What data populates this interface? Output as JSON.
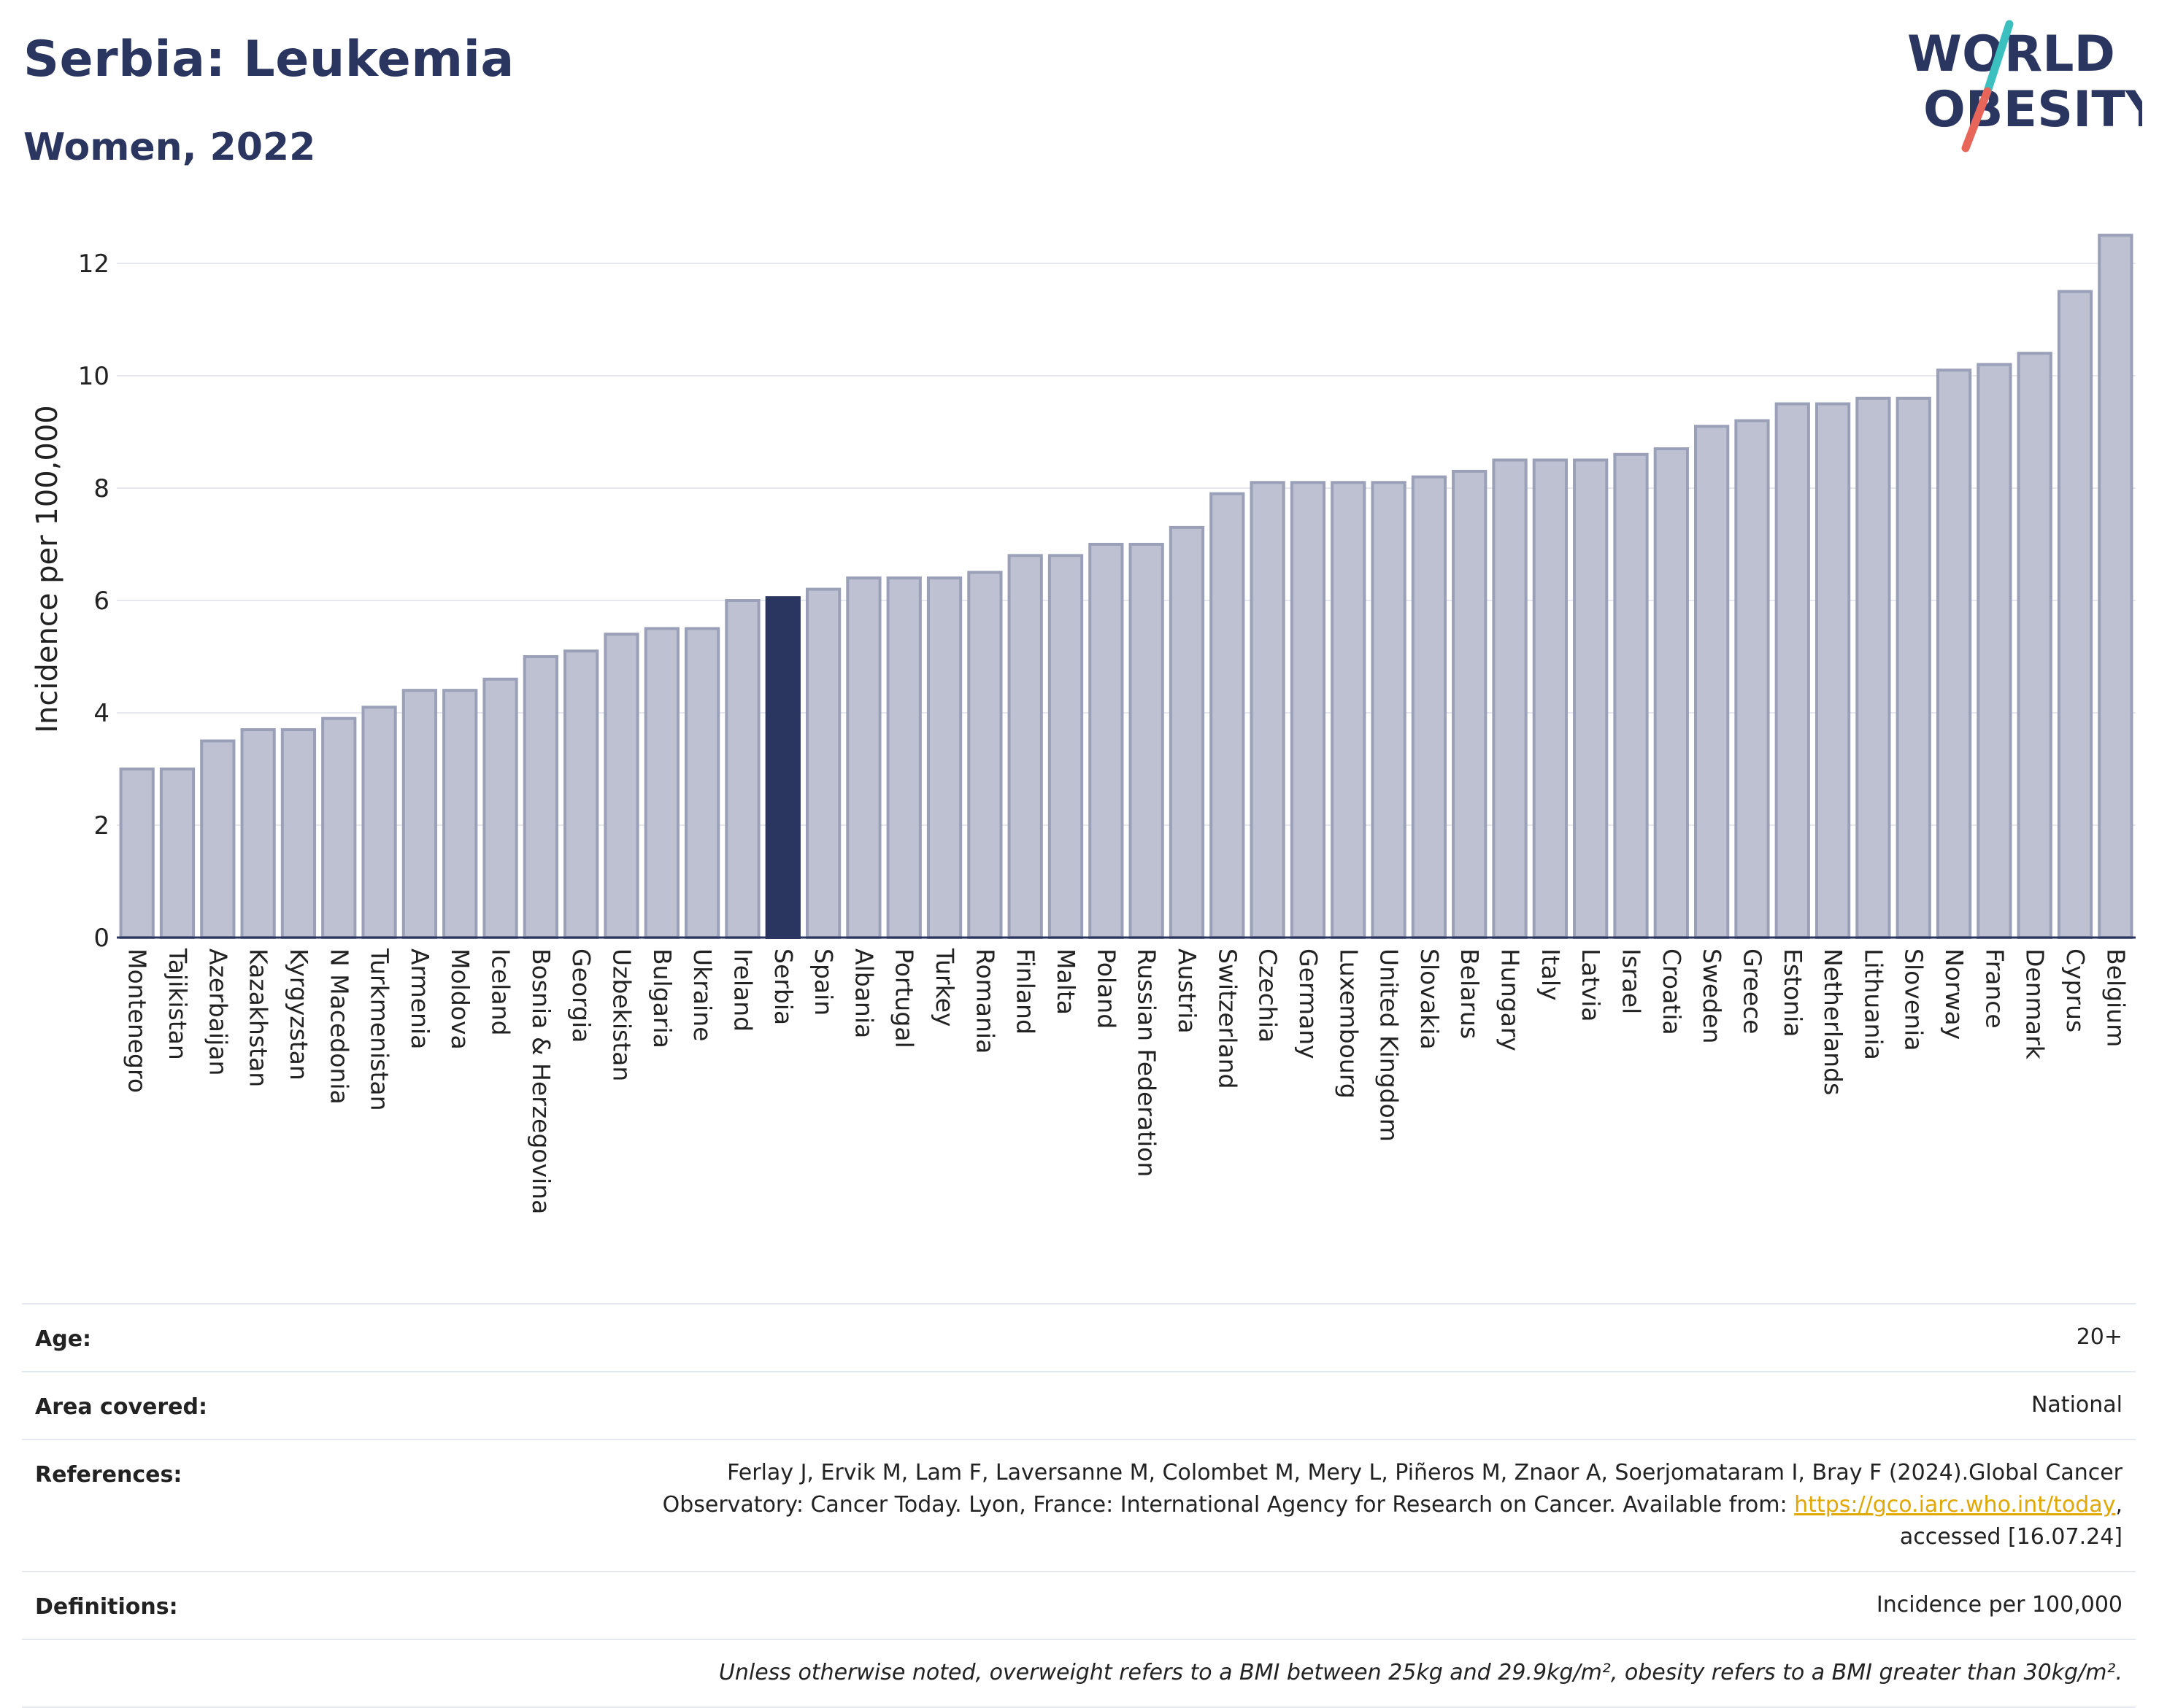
{
  "header": {
    "title": "Serbia: Leukemia",
    "subtitle": "Women, 2022"
  },
  "logo": {
    "line1": "WORLD",
    "line2": "OBESITY",
    "text_color": "#2a3560",
    "slash_colors": [
      "#3bbfbf",
      "#e8655a"
    ]
  },
  "colors": {
    "bar": "#bdc1d1",
    "bar_border": "#9aa0b8",
    "highlight": "#2a3560",
    "grid": "#e6e8ee"
  },
  "chart_data": {
    "type": "bar",
    "title": "",
    "xlabel": "",
    "ylabel": "Incidence per 100,000",
    "ylim": [
      0,
      12.9
    ],
    "yticks": [
      0,
      2,
      4,
      6,
      8,
      10,
      12
    ],
    "grid": true,
    "highlight_category": "Serbia",
    "categories": [
      "Montenegro",
      "Tajikistan",
      "Azerbaijan",
      "Kazakhstan",
      "Kyrgyzstan",
      "N Macedonia",
      "Turkmenistan",
      "Armenia",
      "Moldova",
      "Iceland",
      "Bosnia & Herzegovina",
      "Georgia",
      "Uzbekistan",
      "Bulgaria",
      "Ukraine",
      "Ireland",
      "Serbia",
      "Spain",
      "Albania",
      "Portugal",
      "Turkey",
      "Romania",
      "Finland",
      "Malta",
      "Poland",
      "Russian Federation",
      "Austria",
      "Switzerland",
      "Czechia",
      "Germany",
      "Luxembourg",
      "United Kingdom",
      "Slovakia",
      "Belarus",
      "Hungary",
      "Italy",
      "Latvia",
      "Israel",
      "Croatia",
      "Sweden",
      "Greece",
      "Estonia",
      "Netherlands",
      "Lithuania",
      "Slovenia",
      "Norway",
      "France",
      "Denmark",
      "Cyprus",
      "Belgium"
    ],
    "values": [
      3.0,
      3.0,
      3.5,
      3.7,
      3.7,
      3.9,
      4.1,
      4.4,
      4.4,
      4.6,
      5.0,
      5.1,
      5.4,
      5.5,
      5.5,
      6.0,
      6.05,
      6.2,
      6.4,
      6.4,
      6.4,
      6.5,
      6.8,
      6.8,
      7.0,
      7.0,
      7.3,
      7.9,
      8.1,
      8.1,
      8.1,
      8.1,
      8.2,
      8.3,
      8.5,
      8.5,
      8.5,
      8.6,
      8.7,
      9.1,
      9.2,
      9.5,
      9.5,
      9.6,
      9.6,
      10.1,
      10.2,
      10.4,
      11.5,
      12.5
    ]
  },
  "info": {
    "age": {
      "label": "Age:",
      "value": "20+"
    },
    "area": {
      "label": "Area covered:",
      "value": "National"
    },
    "references": {
      "label": "References:",
      "line1": "Ferlay J, Ervik M, Lam F, Laversanne M, Colombet M, Mery L, Piñeros M, Znaor A, Soerjomataram I, Bray F (2024).Global Cancer",
      "line2_prefix": "Observatory: Cancer Today. Lyon, France: International Agency for Research on Cancer. Available from: ",
      "link": "https://gco.iarc.who.int/today",
      "line2_suffix": ",",
      "line3": "accessed [16.07.24]"
    },
    "definitions": {
      "label": "Definitions:",
      "value": "Incidence per 100,000"
    },
    "note": "Unless otherwise noted, overweight refers to a BMI between 25kg and 29.9kg/m², obesity refers to a BMI greater than 30kg/m²."
  }
}
